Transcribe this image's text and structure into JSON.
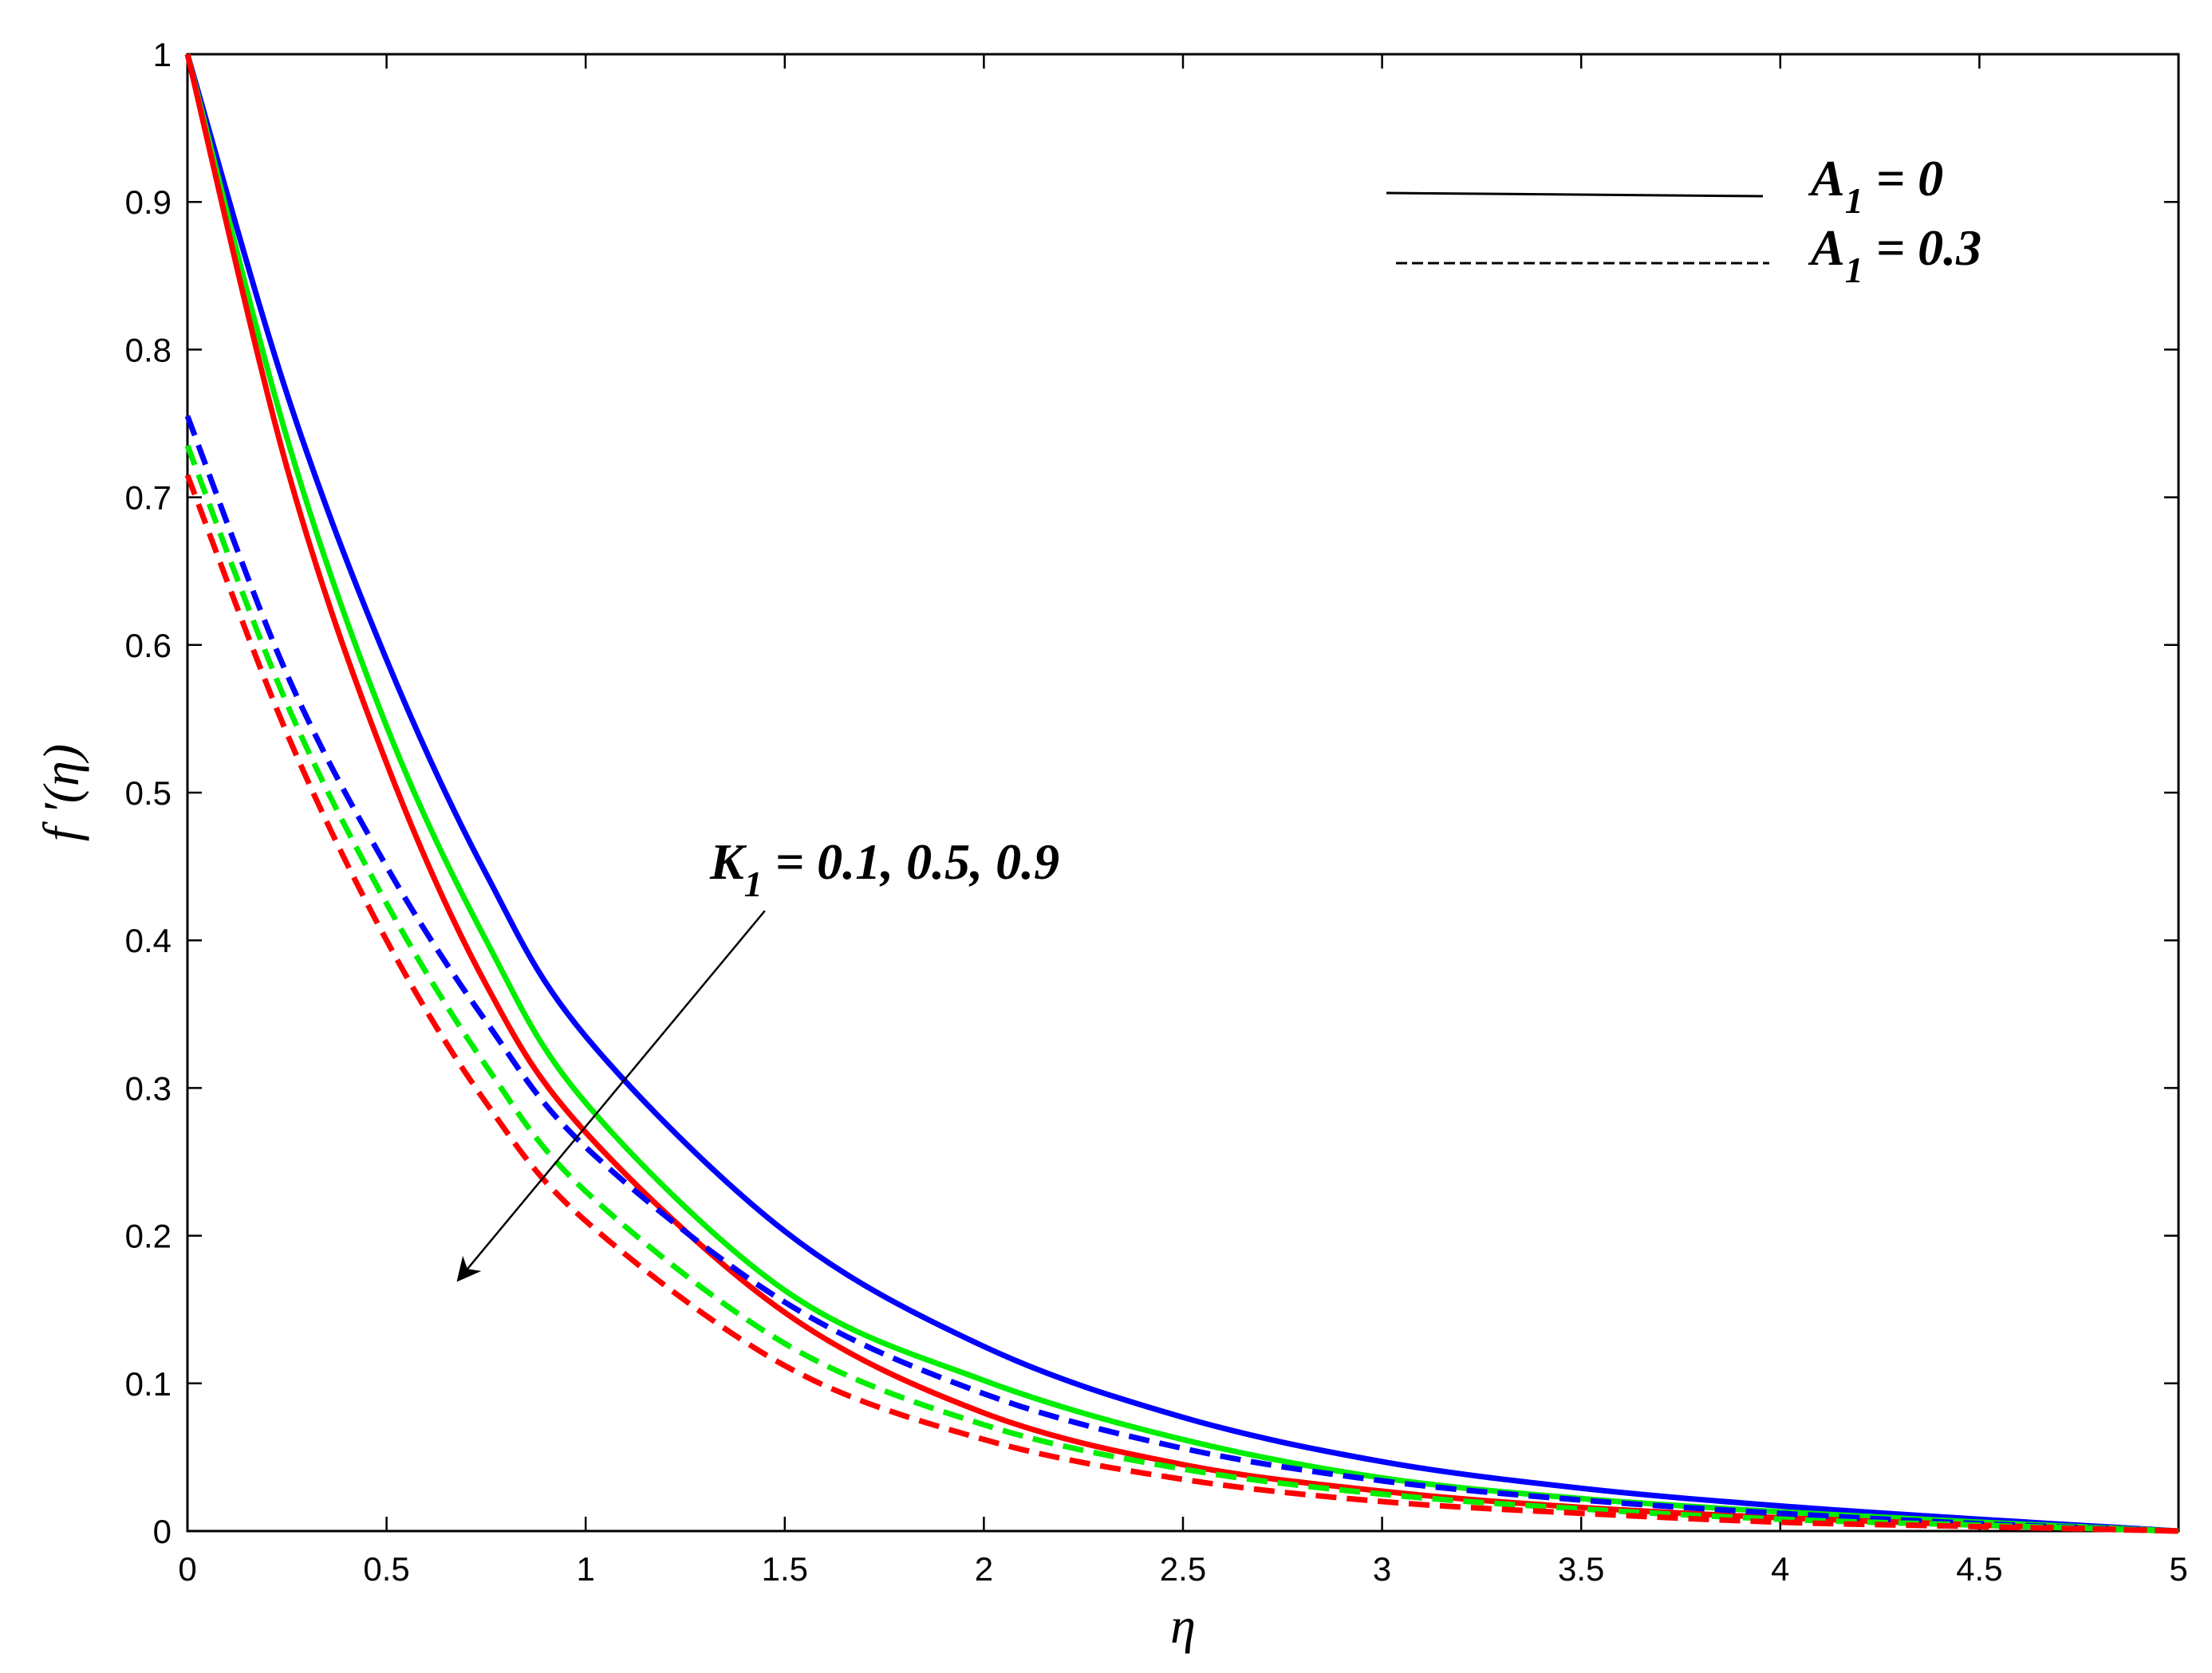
{
  "chart_data": {
    "type": "line",
    "title": "",
    "xlabel": "η",
    "ylabel": "f ′(η)",
    "xlim": [
      0,
      5
    ],
    "ylim": [
      0,
      1
    ],
    "xticks": [
      0,
      0.5,
      1,
      1.5,
      2,
      2.5,
      3,
      3.5,
      4,
      4.5,
      5
    ],
    "yticks": [
      0,
      0.1,
      0.2,
      0.3,
      0.4,
      0.5,
      0.6,
      0.7,
      0.8,
      0.9,
      1
    ],
    "xtick_labels": [
      "0",
      "0.5",
      "1",
      "1.5",
      "2",
      "2.5",
      "3",
      "3.5",
      "4",
      "4.5",
      "5"
    ],
    "ytick_labels": [
      "0",
      "0.1",
      "0.2",
      "0.3",
      "0.4",
      "0.5",
      "0.6",
      "0.7",
      "0.8",
      "0.9",
      "1"
    ],
    "grid": false,
    "legend_position": "top-right",
    "legend": [
      {
        "symbol": "A",
        "subscript": "1",
        "suffix": " = 0",
        "style": "solid"
      },
      {
        "symbol": "A",
        "subscript": "1",
        "suffix": " = 0.3",
        "style": "dashed"
      }
    ],
    "annotation": {
      "symbol": "K",
      "subscript": "1",
      "suffix": " = 0.1, 0.5, 0.9",
      "arrow_from": [
        1.45,
        0.42
      ],
      "arrow_to": [
        0.68,
        0.17
      ]
    },
    "x": [
      0,
      0.25,
      0.5,
      0.75,
      1,
      1.5,
      2,
      2.5,
      3,
      3.5,
      4,
      4.5,
      5
    ],
    "series": [
      {
        "color": "#0000ff",
        "style": "solid",
        "values": [
          1,
          0.77,
          0.59,
          0.445,
          0.335,
          0.203,
          0.125,
          0.077,
          0.047,
          0.029,
          0.017,
          0.008,
          0
        ]
      },
      {
        "color": "#00ee00",
        "style": "solid",
        "values": [
          1,
          0.74,
          0.545,
          0.4,
          0.29,
          0.163,
          0.102,
          0.062,
          0.036,
          0.022,
          0.013,
          0.006,
          0
        ]
      },
      {
        "color": "#ff0000",
        "style": "solid",
        "values": [
          1,
          0.72,
          0.52,
          0.37,
          0.27,
          0.148,
          0.08,
          0.045,
          0.027,
          0.016,
          0.009,
          0.004,
          0
        ]
      },
      {
        "color": "#0000ff",
        "style": "dashed",
        "values": [
          0.755,
          0.58,
          0.45,
          0.345,
          0.26,
          0.155,
          0.093,
          0.056,
          0.034,
          0.021,
          0.012,
          0.005,
          0
        ]
      },
      {
        "color": "#00ee00",
        "style": "dashed",
        "values": [
          0.735,
          0.56,
          0.425,
          0.315,
          0.23,
          0.127,
          0.072,
          0.042,
          0.025,
          0.015,
          0.008,
          0.004,
          0
        ]
      },
      {
        "color": "#ff0000",
        "style": "dashed",
        "values": [
          0.715,
          0.54,
          0.4,
          0.29,
          0.21,
          0.112,
          0.062,
          0.035,
          0.02,
          0.012,
          0.006,
          0.003,
          0
        ]
      }
    ]
  }
}
